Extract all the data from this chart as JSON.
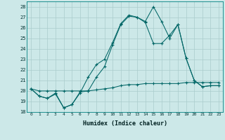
{
  "xlabel": "Humidex (Indice chaleur)",
  "bg_color": "#cce8e8",
  "grid_color": "#aacccc",
  "line_color": "#006666",
  "xlim": [
    -0.5,
    23.5
  ],
  "ylim": [
    18,
    28.5
  ],
  "xticks": [
    0,
    1,
    2,
    3,
    4,
    5,
    6,
    7,
    8,
    9,
    10,
    11,
    12,
    13,
    14,
    15,
    16,
    17,
    18,
    19,
    20,
    21,
    22,
    23
  ],
  "yticks": [
    18,
    19,
    20,
    21,
    22,
    23,
    24,
    25,
    26,
    27,
    28
  ],
  "series": [
    [
      20.2,
      19.5,
      19.3,
      19.8,
      18.4,
      18.7,
      19.8,
      21.3,
      22.5,
      23.0,
      24.6,
      26.4,
      27.2,
      27.0,
      26.6,
      28.0,
      26.6,
      25.0,
      26.3,
      23.1,
      21.0,
      20.4,
      20.5,
      20.5
    ],
    [
      20.2,
      19.5,
      19.3,
      19.7,
      18.4,
      18.7,
      19.9,
      20.0,
      21.3,
      22.3,
      24.4,
      26.3,
      27.1,
      27.0,
      26.5,
      24.5,
      24.5,
      25.3,
      26.3,
      23.1,
      21.0,
      20.4,
      20.5,
      20.5
    ],
    [
      20.2,
      20.0,
      20.0,
      20.0,
      20.0,
      20.0,
      20.0,
      20.0,
      20.1,
      20.2,
      20.3,
      20.5,
      20.6,
      20.6,
      20.7,
      20.7,
      20.7,
      20.7,
      20.7,
      20.8,
      20.8,
      20.8,
      20.8,
      20.8
    ]
  ]
}
